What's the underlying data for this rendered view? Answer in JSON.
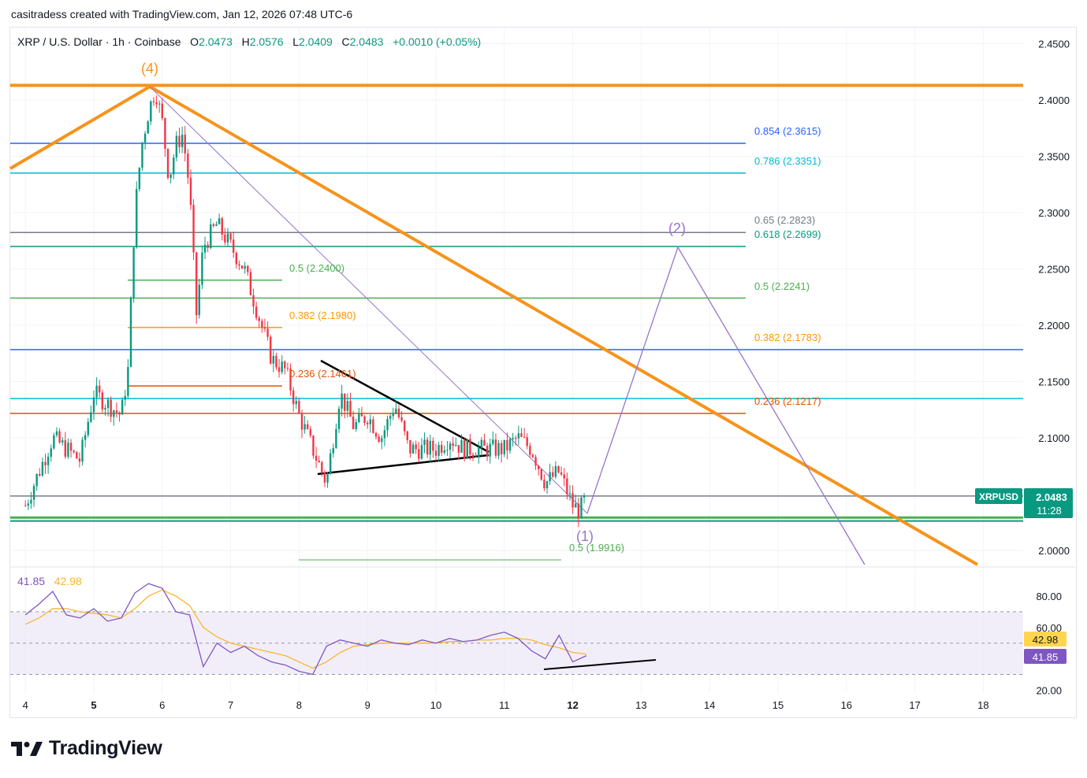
{
  "header": {
    "attribution": "casitradess created with TradingView.com, Jan 12, 2026 07:48 UTC-6"
  },
  "legend": {
    "symbol": "XRP / U.S. Dollar · 1h · Coinbase",
    "open_label": "O",
    "open": "2.0473",
    "high_label": "H",
    "high": "2.0576",
    "low_label": "L",
    "low": "2.0409",
    "close_label": "C",
    "close": "2.0483",
    "change": "+0.0010 (+0.05%)"
  },
  "price_badge": {
    "symbol": "XRPUSD",
    "price": "2.0483",
    "countdown": "11:28"
  },
  "rsi_legend": {
    "rsi": "41.85",
    "ma": "42.98"
  },
  "logo": {
    "text": "TradingView"
  },
  "colors": {
    "up": "#089981",
    "down": "#f23645",
    "orange": "#f7931a",
    "wave": "#9575cd",
    "rsi_band": "#ede7f6"
  },
  "chart_data": {
    "type": "line",
    "x_axis": {
      "ticks": [
        "4",
        "5",
        "6",
        "7",
        "8",
        "9",
        "10",
        "11",
        "12",
        "13",
        "14",
        "15",
        "16",
        "17",
        "18"
      ],
      "bold": [
        "5",
        "12"
      ],
      "unit": "day (Jan 2026)"
    },
    "y_axis": {
      "ticks": [
        "2.4500",
        "2.4000",
        "2.3500",
        "2.3000",
        "2.2500",
        "2.2000",
        "2.1500",
        "2.1000",
        "2.0000"
      ],
      "range": [
        1.99,
        2.455
      ]
    },
    "price_series": {
      "name": "XRPUSD",
      "x": [
        4.0,
        4.2,
        4.4,
        4.6,
        4.8,
        5.0,
        5.2,
        5.4,
        5.5,
        5.6,
        5.7,
        5.8,
        5.9,
        6.0,
        6.1,
        6.2,
        6.3,
        6.4,
        6.5,
        6.6,
        6.8,
        7.0,
        7.2,
        7.4,
        7.6,
        7.8,
        8.0,
        8.2,
        8.4,
        8.6,
        8.8,
        9.0,
        9.2,
        9.4,
        9.6,
        9.8,
        10.0,
        10.2,
        10.4,
        10.6,
        10.8,
        11.0,
        11.2,
        11.4,
        11.6,
        11.8,
        12.0,
        12.1,
        12.2
      ],
      "y": [
        2.04,
        2.07,
        2.1,
        2.09,
        2.08,
        2.14,
        2.13,
        2.12,
        2.16,
        2.3,
        2.36,
        2.39,
        2.41,
        2.38,
        2.33,
        2.36,
        2.37,
        2.32,
        2.21,
        2.27,
        2.29,
        2.27,
        2.25,
        2.21,
        2.17,
        2.16,
        2.12,
        2.09,
        2.06,
        2.14,
        2.11,
        2.12,
        2.1,
        2.13,
        2.09,
        2.09,
        2.09,
        2.1,
        2.09,
        2.09,
        2.09,
        2.09,
        2.1,
        2.09,
        2.06,
        2.07,
        2.04,
        2.035,
        2.048
      ]
    },
    "horizontal_lines": [
      {
        "value": 2.413,
        "color": "#f7931a"
      },
      {
        "value": 2.3615,
        "color": "#2962ff",
        "label": "0.854 (2.3615)"
      },
      {
        "value": 2.3351,
        "color": "#00bcd4",
        "label": "0.786 (2.3351)"
      },
      {
        "value": 2.2823,
        "color": "#787b86",
        "label": "0.65 (2.2823)"
      },
      {
        "value": 2.2699,
        "color": "#089981",
        "label": "0.618 (2.2699)"
      },
      {
        "value": 2.2241,
        "color": "#4caf50",
        "label": "0.5 (2.2241)"
      },
      {
        "value": 2.1783,
        "color": "#2962ff",
        "label": "0.382 (2.1783)"
      },
      {
        "value": 2.1217,
        "color": "#e65100",
        "label": "0.236 (2.1217)"
      },
      {
        "value": 2.1349,
        "color": "#00bcd4"
      },
      {
        "value": 2.0483,
        "color": "#787b86"
      },
      {
        "value": 2.0292,
        "color": "#4caf50"
      },
      {
        "value": 2.0261,
        "color": "#089981"
      }
    ],
    "fib_labels_right": [
      {
        "text": "0.854 (2.3615)",
        "color": "#2962ff"
      },
      {
        "text": "0.786 (2.3351)",
        "color": "#00bcd4"
      },
      {
        "text": "0.65 (2.2823)",
        "color": "#787b86"
      },
      {
        "text": "0.618 (2.2699)",
        "color": "#089981"
      },
      {
        "text": "0.5 (2.2241)",
        "color": "#4caf50"
      },
      {
        "text": "0.382 (2.1783)",
        "color": "#ff9800"
      },
      {
        "text": "0.236 (2.1217)",
        "color": "#e65100"
      }
    ],
    "fib_labels_left": [
      {
        "text": "0.5 (2.2400)",
        "color": "#4caf50",
        "value": 2.24
      },
      {
        "text": "0.382 (2.1980)",
        "color": "#ff9800",
        "value": 2.198
      },
      {
        "text": "0.236 (2.1461)",
        "color": "#e65100",
        "value": 2.1461
      }
    ],
    "lower_fib": {
      "text": "0.5 (1.9916)",
      "value": 1.9916,
      "color": "#4caf50"
    },
    "wave_labels": {
      "top": "(4)",
      "projection": "(2)",
      "bottom": "(1)"
    },
    "rsi": {
      "y_ticks": [
        "80.00",
        "60.00",
        "20.00"
      ],
      "band": [
        30,
        70
      ],
      "current_rsi": "41.85",
      "current_ma": "42.98",
      "x": [
        4.0,
        4.2,
        4.4,
        4.6,
        4.8,
        5.0,
        5.2,
        5.4,
        5.6,
        5.8,
        6.0,
        6.2,
        6.4,
        6.6,
        6.8,
        7.0,
        7.2,
        7.4,
        7.6,
        7.8,
        8.0,
        8.2,
        8.4,
        8.6,
        8.8,
        9.0,
        9.2,
        9.4,
        9.6,
        9.8,
        10.0,
        10.2,
        10.4,
        10.6,
        10.8,
        11.0,
        11.2,
        11.4,
        11.6,
        11.8,
        12.0,
        12.2
      ],
      "rsi_values": [
        68,
        75,
        83,
        68,
        66,
        72,
        64,
        66,
        82,
        88,
        85,
        70,
        68,
        35,
        50,
        44,
        48,
        42,
        38,
        36,
        32,
        30,
        48,
        52,
        50,
        48,
        52,
        50,
        49,
        52,
        50,
        53,
        51,
        52,
        55,
        57,
        53,
        45,
        40,
        55,
        38,
        42
      ],
      "ma_values": [
        62,
        66,
        72,
        72,
        70,
        69,
        68,
        66,
        72,
        80,
        84,
        80,
        74,
        60,
        54,
        50,
        48,
        46,
        44,
        42,
        38,
        34,
        38,
        44,
        48,
        49,
        50,
        50,
        50,
        50,
        50,
        51,
        51,
        52,
        52,
        53,
        53,
        52,
        49,
        47,
        44,
        43
      ]
    }
  }
}
